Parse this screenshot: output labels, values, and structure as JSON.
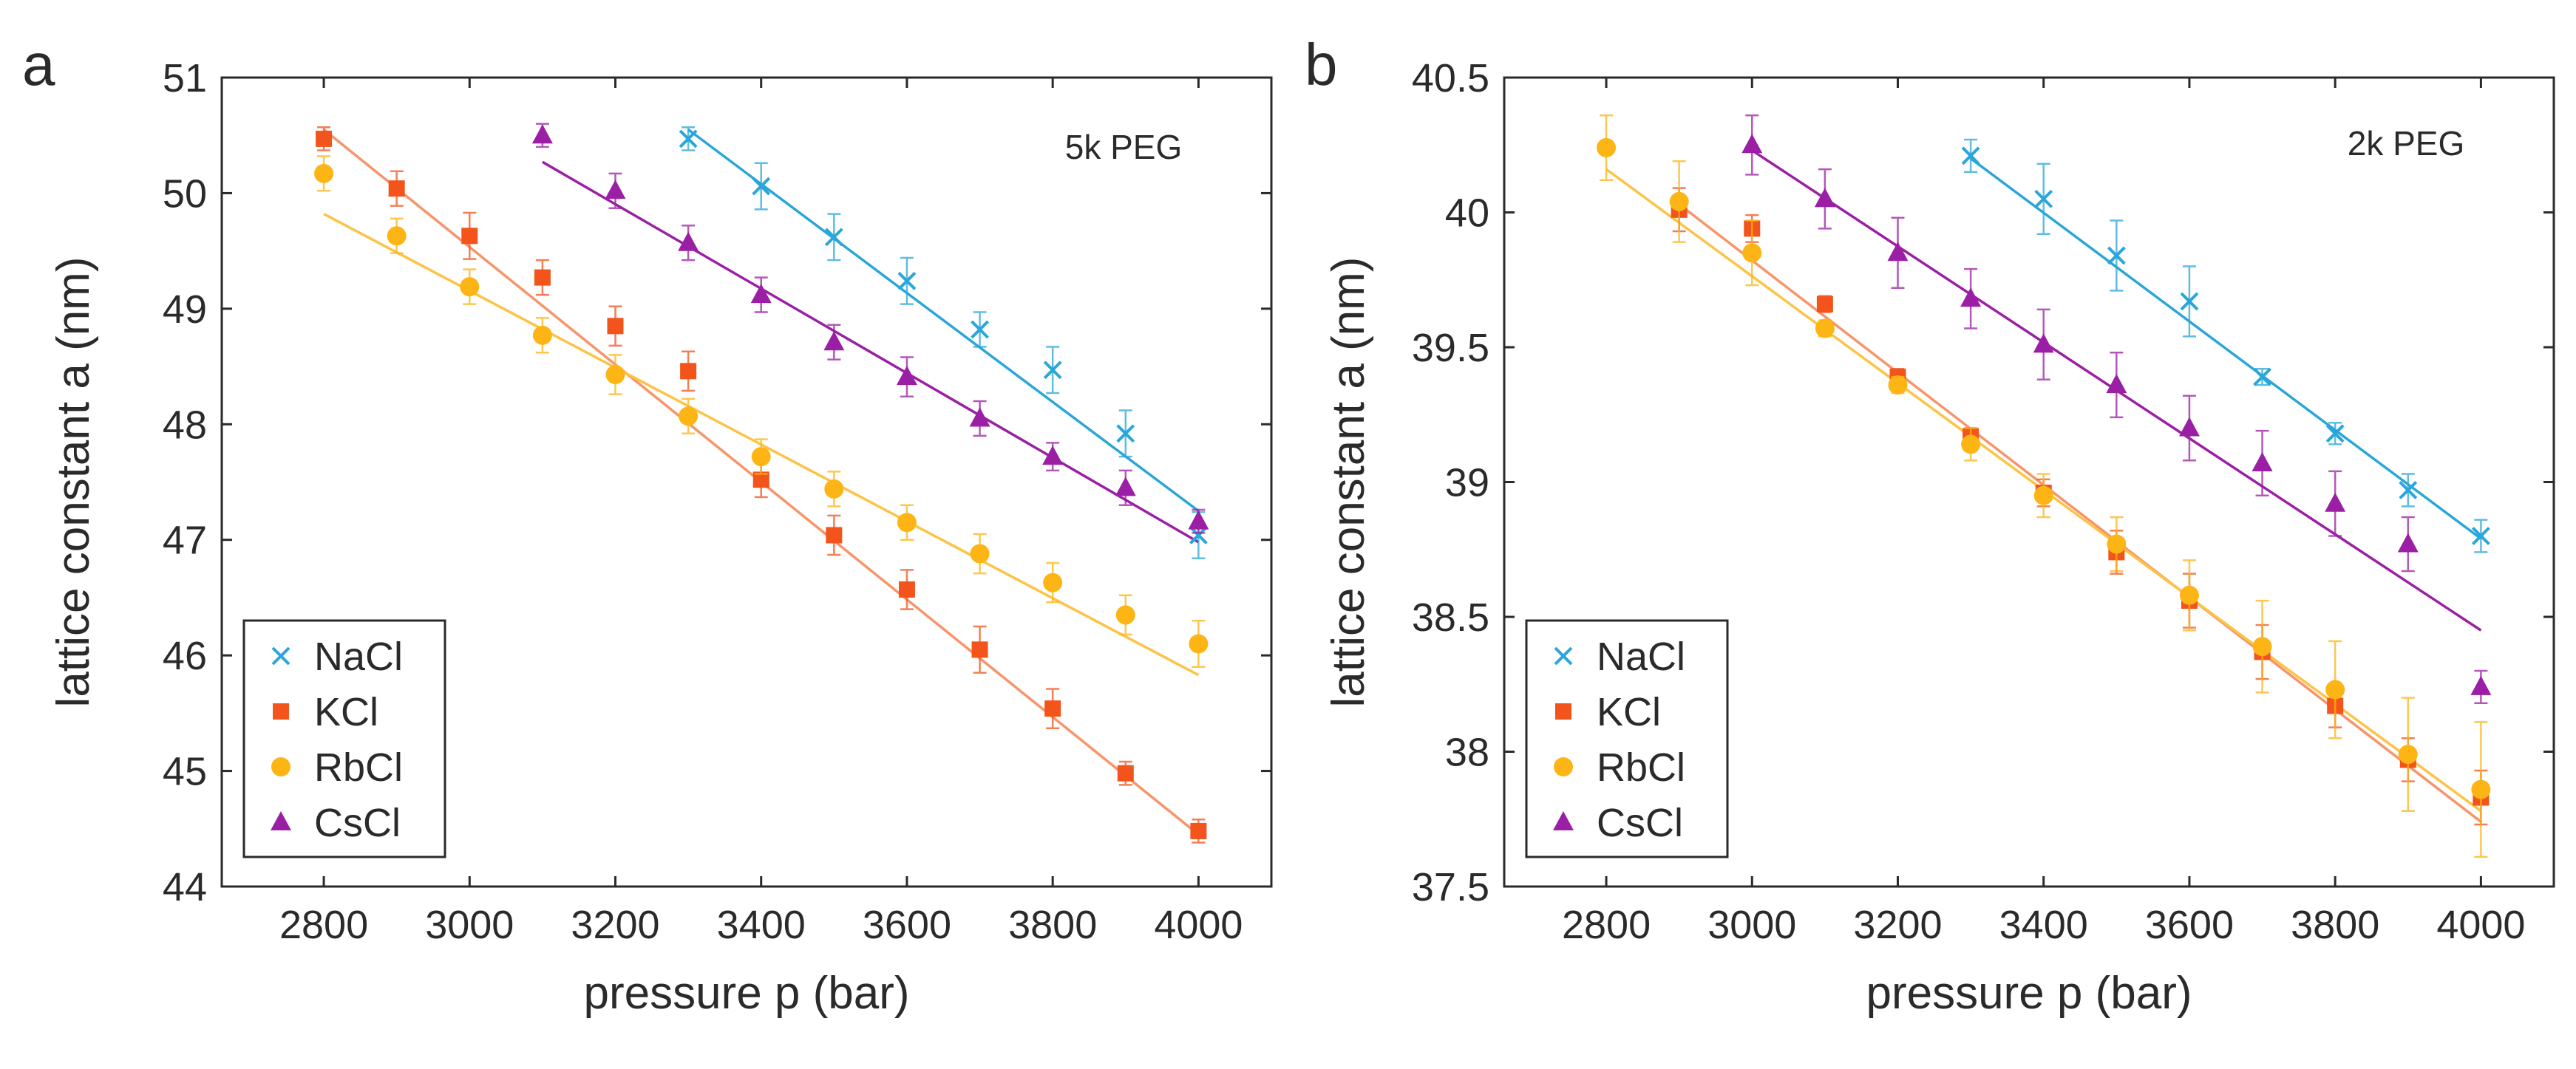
{
  "colors": {
    "NaCl": "#2aa6d9",
    "KCl": "#f2541b",
    "RbCl": "#fdb515",
    "CsCl": "#9b1fa5",
    "KCl_fit": "#f7946a",
    "RbCl_fit": "#fdc345",
    "axis": "#2a2a2a"
  },
  "chart_data": [
    {
      "type": "scatter",
      "panel_label": "a",
      "annotation": "5k PEG",
      "xlabel": "pressure p (bar)",
      "ylabel": "lattice constant a (nm)",
      "xlim": [
        2660,
        4100
      ],
      "ylim": [
        44,
        51
      ],
      "xticks": [
        2800,
        3000,
        3200,
        3400,
        3600,
        3800,
        4000
      ],
      "yticks": [
        44,
        45,
        46,
        47,
        48,
        49,
        50,
        51
      ],
      "xtick_labels": [
        "2800",
        "3000",
        "3200",
        "3400",
        "3600",
        "3800",
        "4000"
      ],
      "ytick_labels": [
        "44",
        "45",
        "46",
        "47",
        "48",
        "49",
        "50",
        "51"
      ],
      "legend_position": "bottom-left",
      "series": [
        {
          "name": "NaCl",
          "marker": "x",
          "x": [
            3300,
            3400,
            3500,
            3600,
            3700,
            3800,
            3900,
            4000
          ],
          "y": [
            50.47,
            50.06,
            49.62,
            49.24,
            48.82,
            48.47,
            47.92,
            47.04
          ],
          "err": [
            0.1,
            0.2,
            0.2,
            0.2,
            0.15,
            0.2,
            0.2,
            0.2
          ],
          "fit": [
            [
              3300,
              50.55
            ],
            [
              4000,
              47.25
            ]
          ]
        },
        {
          "name": "KCl",
          "marker": "square",
          "x": [
            2800,
            2900,
            3000,
            3100,
            3200,
            3300,
            3400,
            3500,
            3600,
            3700,
            3800,
            3900,
            4000
          ],
          "y": [
            50.47,
            50.04,
            49.63,
            49.27,
            48.85,
            48.46,
            47.52,
            47.04,
            46.57,
            46.05,
            45.54,
            44.98,
            44.48
          ],
          "err": [
            0.1,
            0.15,
            0.2,
            0.15,
            0.17,
            0.17,
            0.15,
            0.17,
            0.17,
            0.2,
            0.17,
            0.1,
            0.1
          ],
          "fit": [
            [
              2800,
              50.55
            ],
            [
              4000,
              44.45
            ]
          ]
        },
        {
          "name": "RbCl",
          "marker": "circle",
          "x": [
            2800,
            2900,
            3000,
            3100,
            3200,
            3300,
            3400,
            3500,
            3600,
            3700,
            3800,
            3900,
            4000
          ],
          "y": [
            50.17,
            49.63,
            49.19,
            48.77,
            48.43,
            48.07,
            47.72,
            47.44,
            47.15,
            46.88,
            46.63,
            46.35,
            46.1
          ],
          "err": [
            0.15,
            0.15,
            0.15,
            0.15,
            0.17,
            0.15,
            0.15,
            0.15,
            0.15,
            0.17,
            0.17,
            0.17,
            0.2
          ],
          "fit": [
            [
              2800,
              49.82
            ],
            [
              4000,
              45.83
            ]
          ]
        },
        {
          "name": "CsCl",
          "marker": "triangle",
          "x": [
            3100,
            3200,
            3300,
            3400,
            3500,
            3600,
            3700,
            3800,
            3900,
            4000
          ],
          "y": [
            50.5,
            50.02,
            49.57,
            49.12,
            48.71,
            48.41,
            48.05,
            47.72,
            47.45,
            47.16
          ],
          "err": [
            0.1,
            0.15,
            0.15,
            0.15,
            0.15,
            0.17,
            0.15,
            0.12,
            0.15,
            0.1
          ],
          "fit": [
            [
              3100,
              50.27
            ],
            [
              4000,
              46.98
            ]
          ]
        }
      ]
    },
    {
      "type": "scatter",
      "panel_label": "b",
      "annotation": "2k PEG",
      "xlabel": "pressure p (bar)",
      "ylabel": "lattice constant a (nm)",
      "xlim": [
        2660,
        4100
      ],
      "ylim": [
        37.5,
        40.5
      ],
      "xticks": [
        2800,
        3000,
        3200,
        3400,
        3600,
        3800,
        4000
      ],
      "yticks": [
        37.5,
        38,
        38.5,
        39,
        39.5,
        40,
        40.5
      ],
      "xtick_labels": [
        "2800",
        "3000",
        "3200",
        "3400",
        "3600",
        "3800",
        "4000"
      ],
      "ytick_labels": [
        "37.5",
        "38",
        "38.5",
        "39",
        "39.5",
        "40",
        "40.5"
      ],
      "legend_position": "bottom-left",
      "series": [
        {
          "name": "NaCl",
          "marker": "x",
          "x": [
            3300,
            3400,
            3500,
            3600,
            3700,
            3800,
            3900,
            4000
          ],
          "y": [
            40.21,
            40.05,
            39.84,
            39.67,
            39.39,
            39.18,
            38.97,
            38.8
          ],
          "err": [
            0.06,
            0.13,
            0.13,
            0.13,
            0.03,
            0.04,
            0.06,
            0.06
          ],
          "fit": [
            [
              3300,
              40.2
            ],
            [
              4000,
              38.79
            ]
          ]
        },
        {
          "name": "KCl",
          "marker": "square",
          "x": [
            2900,
            3000,
            3100,
            3200,
            3300,
            3400,
            3500,
            3600,
            3700,
            3800,
            3900,
            4000
          ],
          "y": [
            40.01,
            39.94,
            39.66,
            39.39,
            39.17,
            38.96,
            38.74,
            38.56,
            38.37,
            38.17,
            37.97,
            37.83
          ],
          "err": [
            0.08,
            0.05,
            0.03,
            0.03,
            0.03,
            0.05,
            0.08,
            0.1,
            0.1,
            0.08,
            0.08,
            0.1
          ],
          "fit": [
            [
              2900,
              40.03
            ],
            [
              4000,
              37.74
            ]
          ]
        },
        {
          "name": "RbCl",
          "marker": "circle",
          "x": [
            2800,
            2900,
            3000,
            3100,
            3200,
            3300,
            3400,
            3500,
            3600,
            3700,
            3800,
            3900,
            4000
          ],
          "y": [
            40.24,
            40.04,
            39.85,
            39.57,
            39.36,
            39.14,
            38.95,
            38.77,
            38.58,
            38.39,
            38.23,
            37.99,
            37.86
          ],
          "err": [
            0.12,
            0.15,
            0.12,
            0.03,
            0.03,
            0.06,
            0.08,
            0.1,
            0.13,
            0.17,
            0.18,
            0.21,
            0.25
          ],
          "fit": [
            [
              2800,
              40.16
            ],
            [
              4000,
              37.78
            ]
          ]
        },
        {
          "name": "CsCl",
          "marker": "triangle",
          "x": [
            3000,
            3100,
            3200,
            3300,
            3400,
            3500,
            3600,
            3700,
            3800,
            3900,
            4000
          ],
          "y": [
            40.25,
            40.05,
            39.85,
            39.68,
            39.51,
            39.36,
            39.2,
            39.07,
            38.92,
            38.77,
            38.24
          ],
          "err": [
            0.11,
            0.11,
            0.13,
            0.11,
            0.13,
            0.12,
            0.12,
            0.12,
            0.12,
            0.1,
            0.06
          ],
          "fit": [
            [
              3000,
              40.23
            ],
            [
              4000,
              38.45
            ]
          ]
        }
      ]
    }
  ]
}
